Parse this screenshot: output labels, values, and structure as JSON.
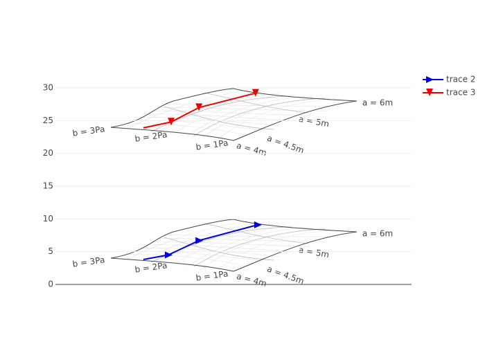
{
  "chart_data": {
    "type": "line",
    "a_labels": [
      "a = 4m",
      "a = 4.5m",
      "a = 5m",
      "a = 6m"
    ],
    "b_labels": [
      "b = 1Pa",
      "b = 2Pa",
      "b = 3Pa"
    ],
    "xlim": [
      0,
      10
    ],
    "ylim": [
      0,
      30
    ],
    "yticks": [
      0,
      5,
      10,
      15,
      20,
      25,
      30
    ],
    "grid": true,
    "legend": "top-right",
    "series": [
      {
        "name": "trace 2",
        "color": "#0000dd",
        "marker": "triangle-right",
        "x": [
          2.47,
          3.17,
          4.03,
          5.68
        ],
        "values": [
          3.8,
          4.5,
          6.7,
          9.1
        ]
      },
      {
        "name": "trace 3",
        "color": "#ee0000",
        "marker": "triangle-down",
        "x": [
          2.47,
          3.25,
          4.03,
          5.62
        ],
        "values": [
          23.9,
          24.8,
          27.0,
          29.2
        ]
      }
    ]
  }
}
